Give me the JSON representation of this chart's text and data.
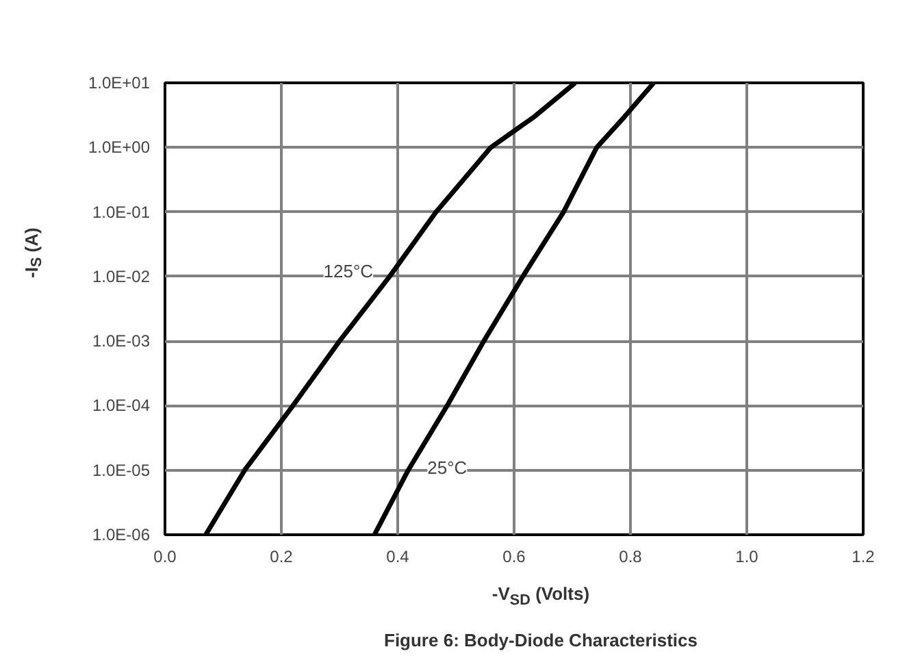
{
  "chart_data": {
    "type": "line",
    "title": "Figure 6: Body-Diode Characteristics",
    "xlabel": "-V$_{SD}$ (Volts)",
    "ylabel": "-I$_{S}$ (A)",
    "log": "y",
    "grid": true,
    "marker": "none",
    "line_style": "solid",
    "xlim": [
      0,
      1.2
    ],
    "ylim": [
      1e-06,
      10
    ],
    "xticks": [
      {
        "value": 0,
        "label": "0.0"
      },
      {
        "value": 0.2,
        "label": "0.2"
      },
      {
        "value": 0.4,
        "label": "0.4"
      },
      {
        "value": 0.6,
        "label": "0.6"
      },
      {
        "value": 0.8,
        "label": "0.8"
      },
      {
        "value": 1.0,
        "label": "1.0"
      },
      {
        "value": 1.2,
        "label": "1.2"
      }
    ],
    "yticks": [
      {
        "value": 1e-06,
        "label": "1.0E-06"
      },
      {
        "value": 1e-05,
        "label": "1.0E-05"
      },
      {
        "value": 0.0001,
        "label": "1.0E-04"
      },
      {
        "value": 0.001,
        "label": "1.0E-03"
      },
      {
        "value": 0.01,
        "label": "1.0E-02"
      },
      {
        "value": 0.1,
        "label": "1.0E-01"
      },
      {
        "value": 1,
        "label": "1.0E+00"
      },
      {
        "value": 10,
        "label": "1.0E+01"
      }
    ],
    "series": [
      {
        "name": "125°C",
        "color": "#000000",
        "x": [
          0.07,
          0.137,
          0.22,
          0.3,
          0.386,
          0.466,
          0.56,
          0.635,
          0.705
        ],
        "values": [
          1e-06,
          1e-05,
          0.0001,
          0.001,
          0.01,
          0.1,
          1,
          3,
          10
        ]
      },
      {
        "name": "25°C",
        "color": "#000000",
        "x": [
          0.36,
          0.418,
          0.485,
          0.548,
          0.615,
          0.685,
          0.742,
          0.79,
          0.84
        ],
        "values": [
          1e-06,
          1e-05,
          0.0001,
          0.001,
          0.01,
          0.1,
          1,
          3,
          10
        ]
      }
    ]
  }
}
